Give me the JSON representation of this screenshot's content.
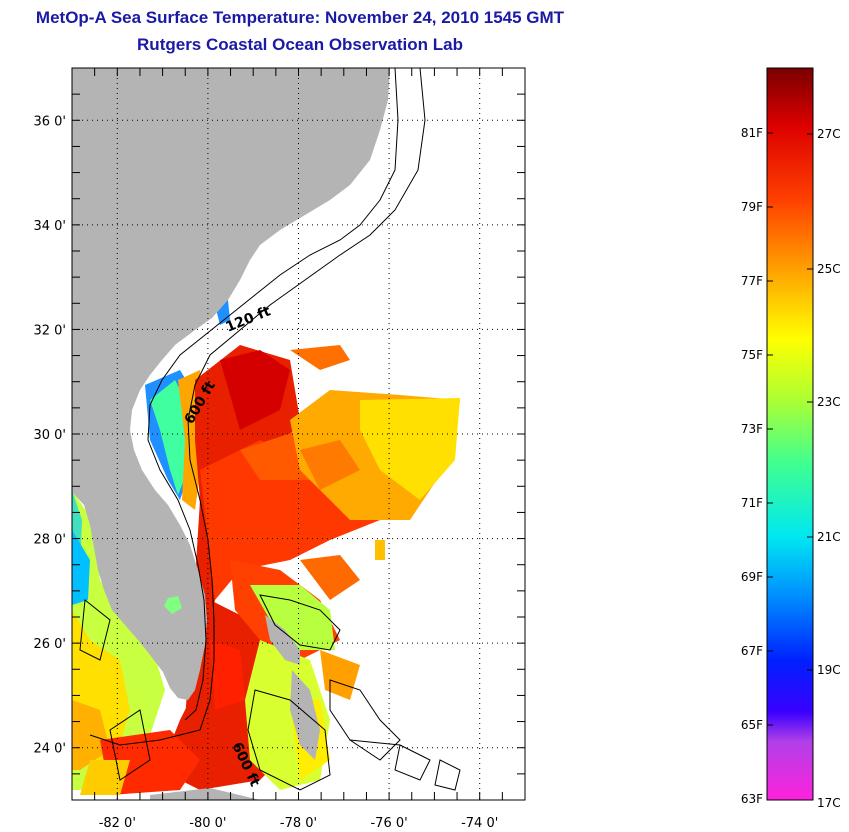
{
  "title": "MetOp-A Sea Surface Temperature:  November 24, 2010 1545 GMT",
  "subtitle": "Rutgers Coastal Ocean Observation Lab",
  "map": {
    "lon_range": [
      -83,
      -73
    ],
    "lat_range": [
      23,
      37
    ],
    "lon_ticks": [
      -82,
      -80,
      -78,
      -76,
      -74
    ],
    "lon_tick_labels": [
      "-82 0'",
      "-80 0'",
      "-78 0'",
      "-76 0'",
      "-74 0'"
    ],
    "lat_ticks": [
      24,
      26,
      28,
      30,
      32,
      34,
      36
    ],
    "lat_tick_labels": [
      "24 0'",
      "26 0'",
      "28 0'",
      "30 0'",
      "32 0'",
      "34 0'",
      "36 0'"
    ],
    "grid": "dotted",
    "contour_labels": [
      "120 ft",
      "600 ft",
      "600 ft"
    ],
    "land_color": "#b4b4b4"
  },
  "colorbar": {
    "f_labels": [
      "81F",
      "79F",
      "77F",
      "75F",
      "73F",
      "71F",
      "69F",
      "67F",
      "65F",
      "63F"
    ],
    "c_labels": [
      "27C",
      "25C",
      "23C",
      "21C",
      "19C",
      "17C"
    ],
    "colors": [
      "#ff22cc",
      "#8a2be2",
      "#0000ff",
      "#00a0ff",
      "#00f0f0",
      "#80ff80",
      "#ffff00",
      "#ffa500",
      "#ff3300",
      "#d40000",
      "#800000"
    ]
  }
}
